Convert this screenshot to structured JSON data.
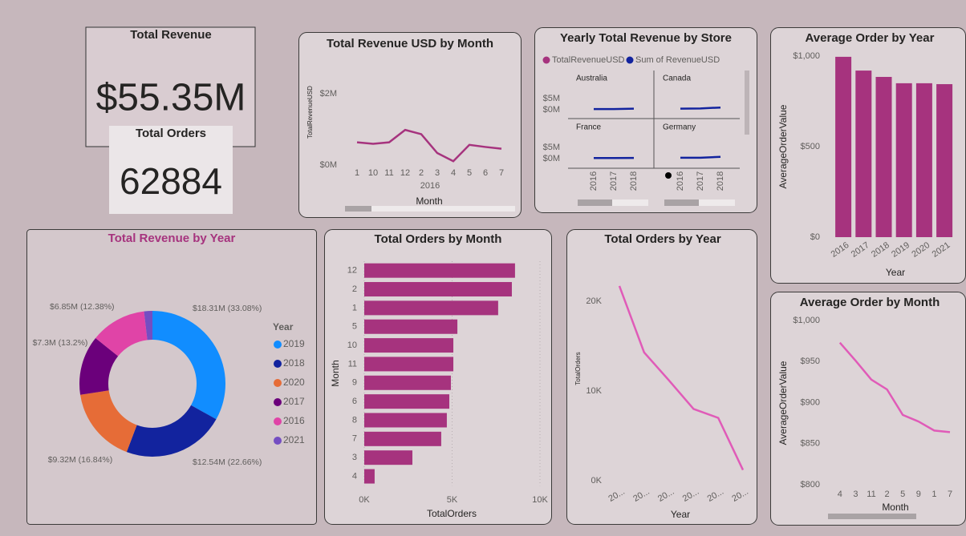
{
  "cards": [
    {
      "title": "Total Revenue",
      "value": "$55.35M"
    },
    {
      "title": "Total Orders",
      "value": "62884"
    }
  ],
  "chart_data": [
    {
      "type": "line",
      "title": "Total Revenue USD by Month",
      "categories": [
        "1",
        "10",
        "11",
        "12",
        "2",
        "3",
        "4",
        "5",
        "6",
        "7"
      ],
      "x_group": "2016",
      "x_label": "Month",
      "y_label": "TotalRevenueUSD",
      "values": [
        640000,
        600000,
        640000,
        990000,
        870000,
        340000,
        110000,
        570000,
        510000,
        460000
      ],
      "color": "#a6337e",
      "ylim": [
        -200000,
        2500000
      ],
      "yticks": [
        {
          "value": 0,
          "label": "$0M"
        },
        {
          "value": 2000000,
          "label": "$2M"
        }
      ]
    },
    {
      "type": "line",
      "title": "Yearly Total Revenue by Store",
      "legend": [
        {
          "name": "TotalRevenueUSD",
          "color": "#a6337e"
        },
        {
          "name": "Sum of RevenueUSD",
          "color": "#12239e"
        }
      ],
      "categories": [
        "2016",
        "2017",
        "2018"
      ],
      "panels": [
        {
          "name": "Australia",
          "values": [
            300000,
            300000,
            500000
          ]
        },
        {
          "name": "Canada",
          "values": [
            500000,
            600000,
            1000000
          ]
        },
        {
          "name": "France",
          "values": [
            250000,
            250000,
            300000
          ]
        },
        {
          "name": "Germany",
          "values": [
            400000,
            400000,
            800000
          ]
        }
      ],
      "ylim": [
        -1000000,
        9000000
      ],
      "yticks": [
        {
          "value": 0,
          "label": "$0M"
        },
        {
          "value": 5000000,
          "label": "$5M"
        }
      ]
    },
    {
      "type": "bar",
      "title": "Average Order by Year",
      "categories": [
        "2016",
        "2017",
        "2018",
        "2019",
        "2020",
        "2021"
      ],
      "values": [
        996,
        920,
        885,
        850,
        850,
        845
      ],
      "color": "#a6337e",
      "x_label": "Year",
      "y_label": "AverageOrderValue",
      "ylim": [
        0,
        1000
      ],
      "yticks": [
        {
          "value": 0,
          "label": "$0"
        },
        {
          "value": 500,
          "label": "$500"
        },
        {
          "value": 1000,
          "label": "$1,000"
        }
      ]
    },
    {
      "type": "line",
      "title": "Average Order by Month",
      "categories": [
        "4",
        "3",
        "11",
        "2",
        "5",
        "9",
        "1",
        "7"
      ],
      "values": [
        973,
        951,
        928,
        916,
        885,
        877,
        866,
        864
      ],
      "color": "#e05bb8",
      "x_label": "Month",
      "y_label": "AverageOrderValue",
      "ylim": [
        800,
        1000
      ],
      "yticks": [
        {
          "value": 800,
          "label": "$800"
        },
        {
          "value": 850,
          "label": "$850"
        },
        {
          "value": 900,
          "label": "$900"
        },
        {
          "value": 950,
          "label": "$950"
        },
        {
          "value": 1000,
          "label": "$1,000"
        }
      ]
    },
    {
      "type": "pie",
      "title": "Total Revenue by Year",
      "legend_title": "Year",
      "donut": true,
      "categories": [
        "2019",
        "2018",
        "2020",
        "2017",
        "2016",
        "2021"
      ],
      "values": [
        18.31,
        12.54,
        9.32,
        7.3,
        6.85,
        1.02
      ],
      "value_labels": [
        "$18.31M (33.08%)",
        "$12.54M (22.66%)",
        "$9.32M (16.84%)",
        "$7.3M (13.2%)",
        "$6.85M (12.38%)",
        null
      ],
      "colors": [
        "#118dff",
        "#12239e",
        "#e66c37",
        "#6b007b",
        "#e044a7",
        "#744ec2"
      ]
    },
    {
      "type": "bar",
      "horizontal": true,
      "title": "Total Orders by Month",
      "categories": [
        "12",
        "2",
        "1",
        "5",
        "10",
        "11",
        "9",
        "6",
        "8",
        "7",
        "3",
        "4"
      ],
      "values": [
        8580,
        8400,
        7620,
        5300,
        5070,
        5070,
        4930,
        4840,
        4700,
        4380,
        2740,
        590
      ],
      "color": "#a6337e",
      "x_label": "TotalOrders",
      "y_label": "Month",
      "grid": true,
      "xlim": [
        0,
        10000
      ],
      "xticks": [
        {
          "value": 0,
          "label": "0K"
        },
        {
          "value": 5000,
          "label": "5K"
        },
        {
          "value": 10000,
          "label": "10K"
        }
      ]
    },
    {
      "type": "line",
      "title": "Total Orders by Year",
      "categories": [
        "20...",
        "20...",
        "20...",
        "20...",
        "20...",
        "20..."
      ],
      "values": [
        21700,
        14300,
        11200,
        8000,
        7000,
        1200
      ],
      "color": "#e05bb8",
      "x_label": "Year",
      "y_label": "TotalOrders",
      "ylim": [
        0,
        22500
      ],
      "yticks": [
        {
          "value": 0,
          "label": "0K"
        },
        {
          "value": 10000,
          "label": "10K"
        },
        {
          "value": 20000,
          "label": "20K"
        }
      ]
    }
  ]
}
